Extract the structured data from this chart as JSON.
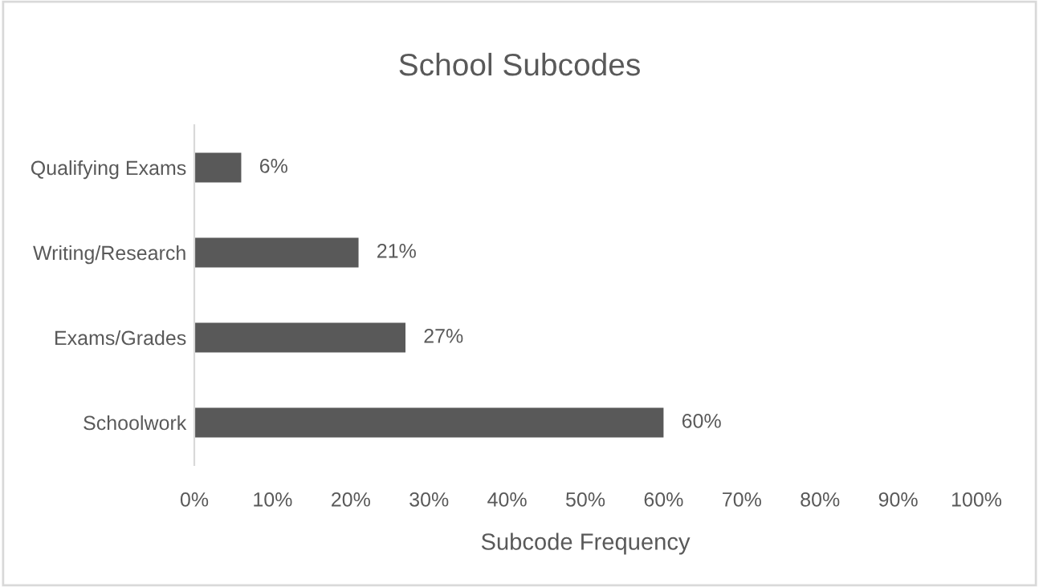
{
  "chart_data": {
    "type": "bar",
    "orientation": "horizontal",
    "title": "School Subcodes",
    "xlabel": "Subcode Frequency",
    "categories": [
      "Qualifying Exams",
      "Writing/Research",
      "Exams/Grades",
      "Schoolwork"
    ],
    "values": [
      6,
      21,
      27,
      60
    ],
    "color": "#595959",
    "value_labels": [
      "6%",
      "21%",
      "27%",
      "60%"
    ],
    "xlim": [
      0,
      100
    ],
    "xticks": [
      {
        "value": 0,
        "label": "0%"
      },
      {
        "value": 10,
        "label": "10%"
      },
      {
        "value": 20,
        "label": "20%"
      },
      {
        "value": 30,
        "label": "30%"
      },
      {
        "value": 40,
        "label": "40%"
      },
      {
        "value": 50,
        "label": "50%"
      },
      {
        "value": 60,
        "label": "60%"
      },
      {
        "value": 70,
        "label": "70%"
      },
      {
        "value": 80,
        "label": "80%"
      },
      {
        "value": 90,
        "label": "90%"
      },
      {
        "value": 100,
        "label": "100%"
      }
    ],
    "grid": false,
    "legend": false
  }
}
